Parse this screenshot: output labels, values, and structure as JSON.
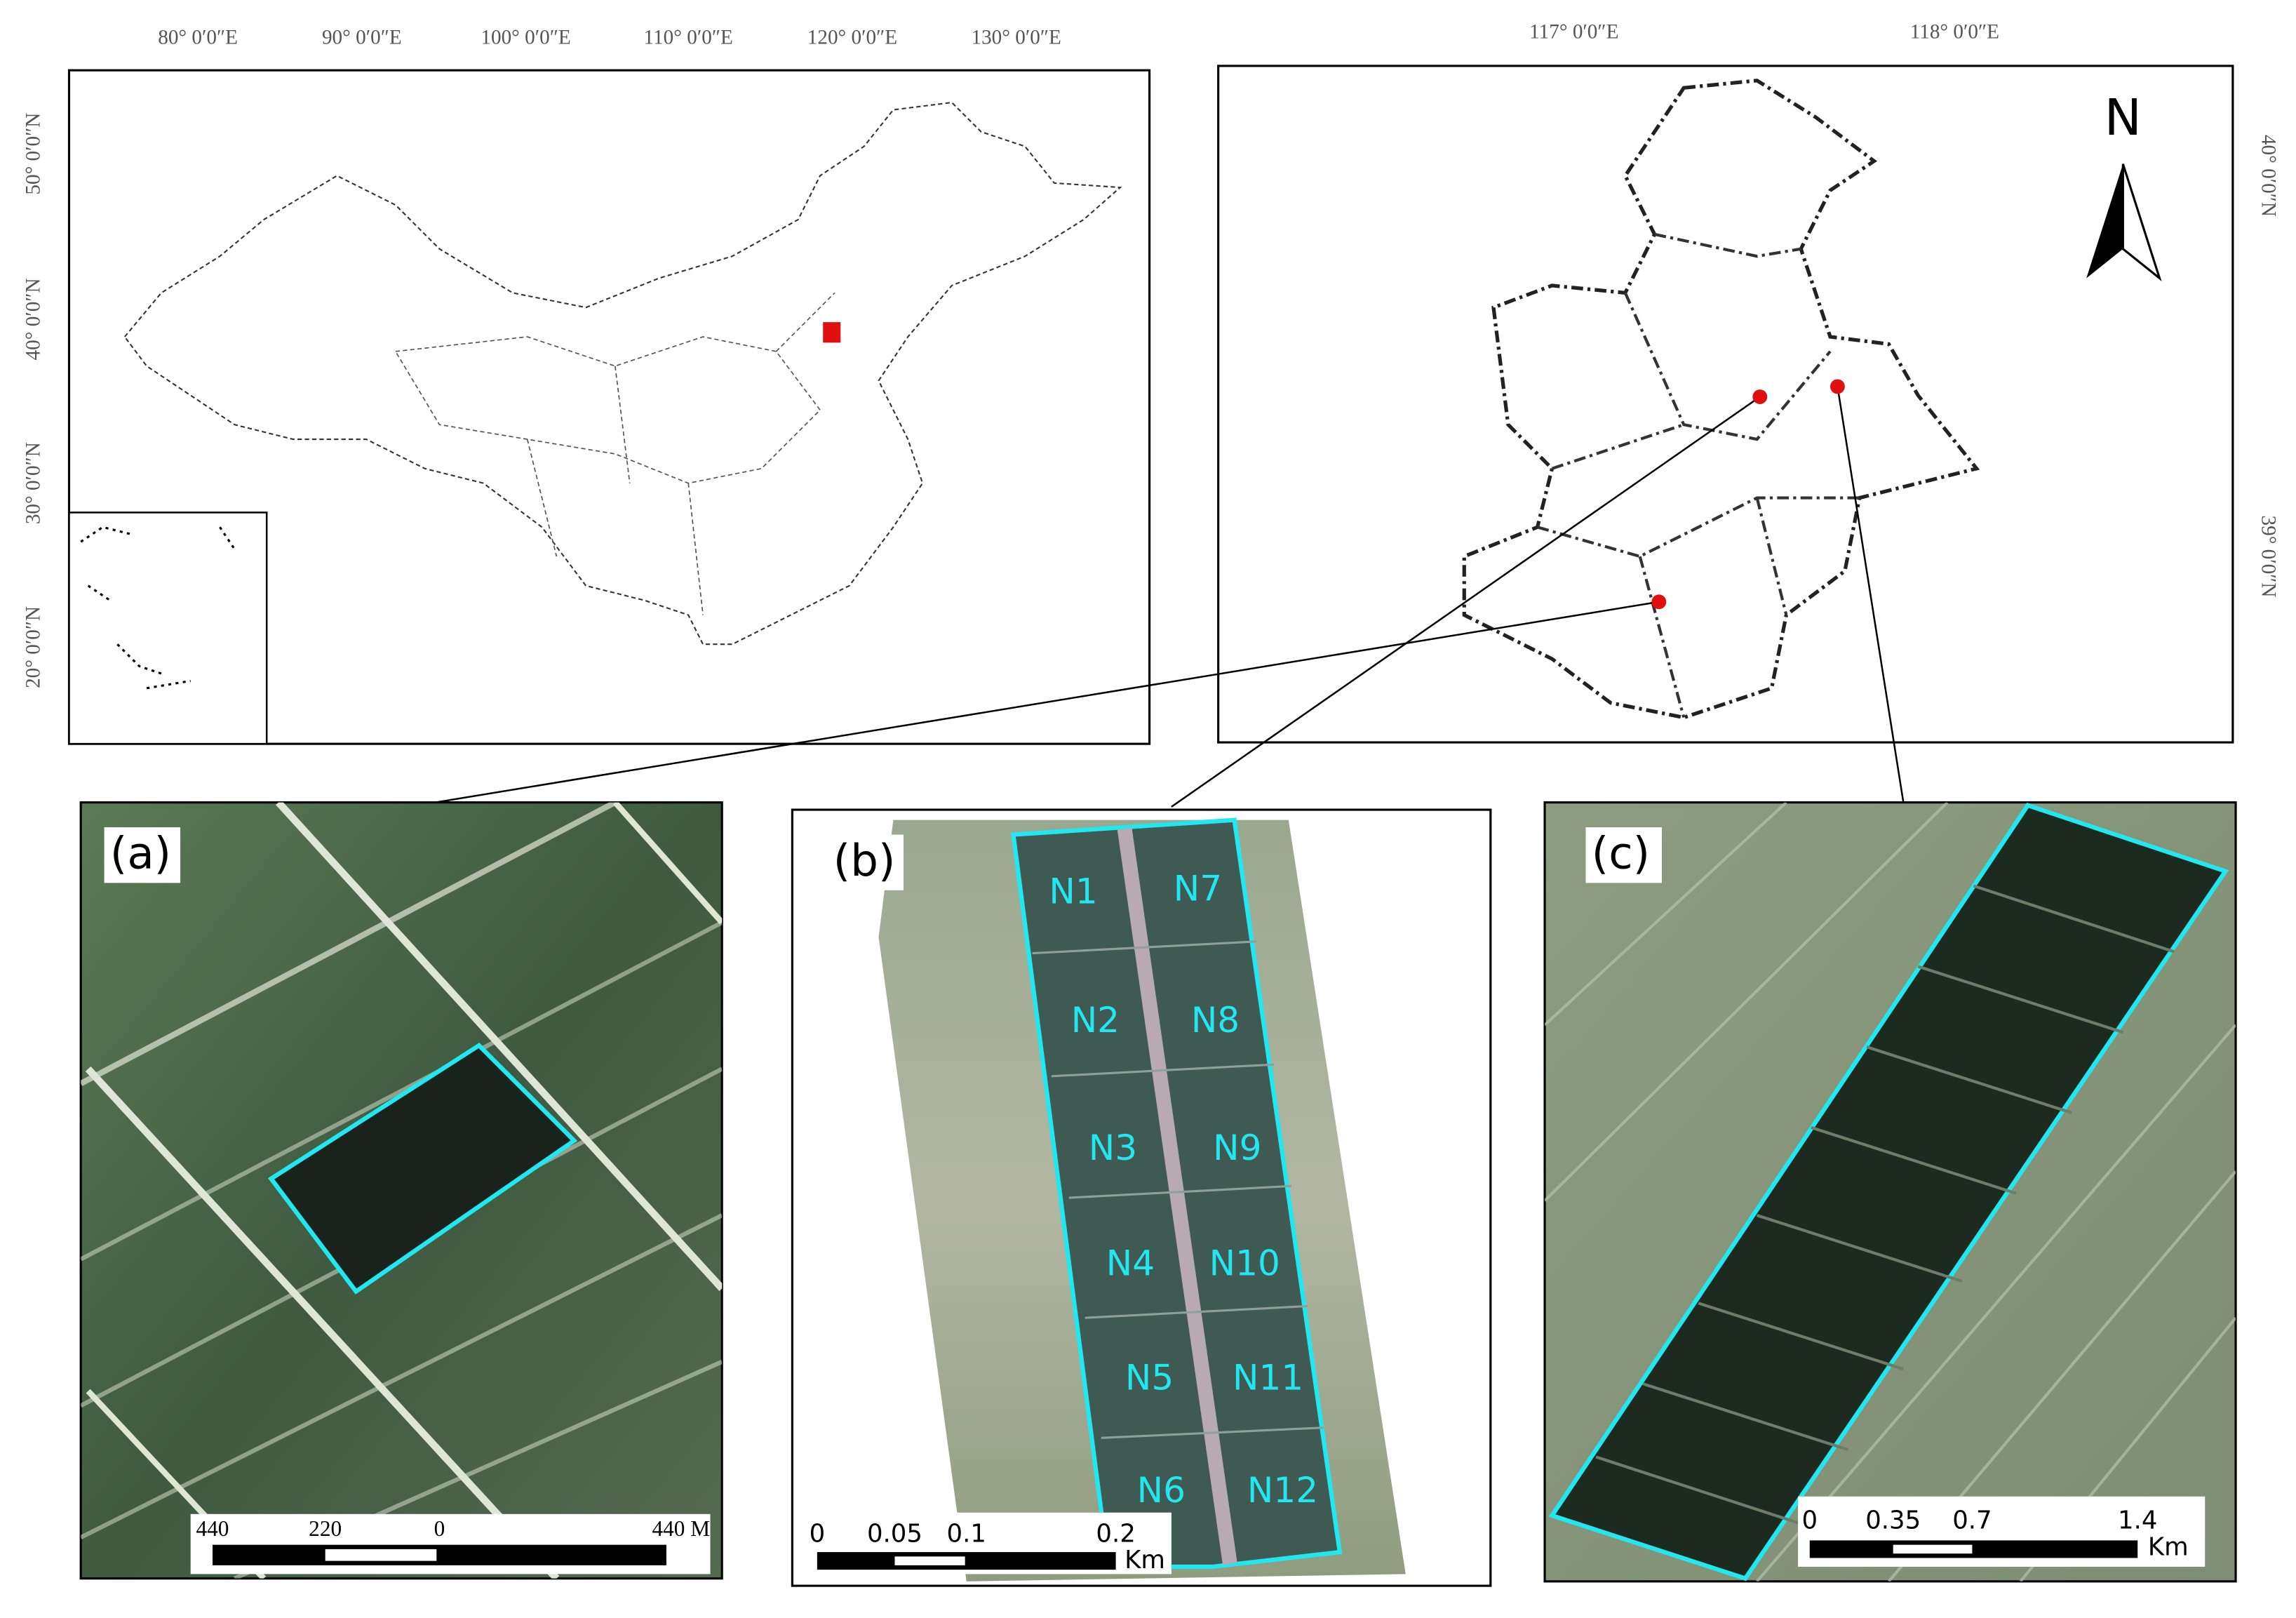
{
  "china_map": {
    "lon_labels": [
      "80° 0′0″E",
      "90° 0′0″E",
      "100° 0′0″E",
      "110° 0′0″E",
      "120° 0′0″E",
      "130° 0′0″E"
    ],
    "lat_labels": [
      "50° 0′0″N",
      "40° 0′0″N",
      "30° 0′0″N",
      "20° 0′0″N"
    ]
  },
  "tianjin_map": {
    "lon_labels": [
      "117° 0′0″E",
      "118° 0′0″E"
    ],
    "lat_labels": [
      "40° 0′0″N",
      "39° 0′0″N"
    ],
    "north": "N"
  },
  "panels": [
    {
      "label": "(a)",
      "scale_labels": [
        "440",
        "220",
        "0",
        "440 M"
      ]
    },
    {
      "label": "(b)",
      "plots": [
        "N1",
        "N7",
        "N2",
        "N8",
        "N3",
        "N9",
        "N4",
        "N10",
        "N5",
        "N11",
        "N6",
        "N12"
      ],
      "scale_labels": [
        "0",
        "0.05",
        "0.1",
        "0.2",
        "Km"
      ]
    },
    {
      "label": "(c)",
      "scale_labels": [
        "0",
        "0.35",
        "0.7",
        "1.4",
        "Km"
      ]
    }
  ]
}
